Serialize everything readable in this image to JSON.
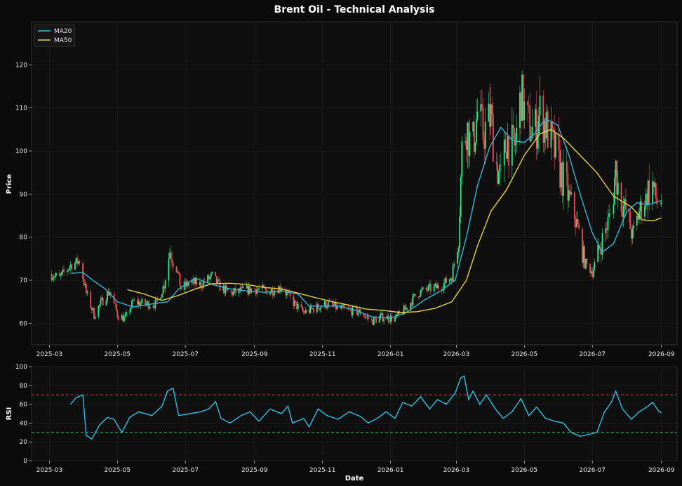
{
  "chart_data": [
    {
      "type": "candlestick",
      "title": "Brent Oil - Technical Analysis",
      "ylabel": "Price",
      "xlim": [
        "2025-02-13",
        "2026-09-15"
      ],
      "ylim": [
        55,
        130
      ],
      "yticks": [
        60,
        70,
        80,
        90,
        100,
        110,
        120
      ],
      "xticks": [
        "2025-03",
        "2025-05",
        "2025-07",
        "2025-09",
        "2025-11",
        "2026-01",
        "2026-03",
        "2026-05",
        "2026-07",
        "2026-09"
      ],
      "grid": true,
      "legend": {
        "position": "top-left",
        "entries": [
          "MA20",
          "MA50"
        ]
      },
      "colors": {
        "up": "#2ee88a",
        "down": "#ef4d57",
        "ma20": "#31b6d8",
        "ma50": "#e8d23f",
        "background": "#0b0b0b",
        "panel": "#0f0f0f"
      },
      "close_profile": [
        [
          "2025-03-01",
          71.5
        ],
        [
          "2025-03-10",
          70.5
        ],
        [
          "2025-03-20",
          73.5
        ],
        [
          "2025-03-28",
          74.5
        ],
        [
          "2025-04-03",
          67
        ],
        [
          "2025-04-10",
          62
        ],
        [
          "2025-04-17",
          65
        ],
        [
          "2025-04-24",
          67.5
        ],
        [
          "2025-05-01",
          62
        ],
        [
          "2025-05-08",
          61
        ],
        [
          "2025-05-15",
          65
        ],
        [
          "2025-05-25",
          64.5
        ],
        [
          "2025-06-05",
          64.5
        ],
        [
          "2025-06-12",
          69
        ],
        [
          "2025-06-17",
          77
        ],
        [
          "2025-06-22",
          74
        ],
        [
          "2025-06-27",
          68
        ],
        [
          "2025-07-05",
          69.5
        ],
        [
          "2025-07-15",
          69
        ],
        [
          "2025-07-25",
          71
        ],
        [
          "2025-08-01",
          68.5
        ],
        [
          "2025-08-10",
          67
        ],
        [
          "2025-08-20",
          67.5
        ],
        [
          "2025-09-01",
          68
        ],
        [
          "2025-09-15",
          67.5
        ],
        [
          "2025-09-25",
          68.5
        ],
        [
          "2025-10-05",
          65
        ],
        [
          "2025-10-15",
          62.5
        ],
        [
          "2025-10-25",
          63.5
        ],
        [
          "2025-11-05",
          64.5
        ],
        [
          "2025-11-15",
          63.5
        ],
        [
          "2025-11-25",
          63
        ],
        [
          "2025-12-05",
          62.5
        ],
        [
          "2025-12-15",
          60.5
        ],
        [
          "2025-12-25",
          61.5
        ],
        [
          "2026-01-05",
          61
        ],
        [
          "2026-01-15",
          63.5
        ],
        [
          "2026-01-25",
          67
        ],
        [
          "2026-02-05",
          68
        ],
        [
          "2026-02-15",
          68.5
        ],
        [
          "2026-02-25",
          71
        ],
        [
          "2026-03-03",
          80
        ],
        [
          "2026-03-06",
          100
        ],
        [
          "2026-03-10",
          106
        ],
        [
          "2026-03-15",
          100
        ],
        [
          "2026-03-20",
          109
        ],
        [
          "2026-03-25",
          104
        ],
        [
          "2026-04-01",
          108
        ],
        [
          "2026-04-05",
          98
        ],
        [
          "2026-04-10",
          93
        ],
        [
          "2026-04-15",
          103
        ],
        [
          "2026-04-22",
          100
        ],
        [
          "2026-04-28",
          113
        ],
        [
          "2026-05-03",
          107
        ],
        [
          "2026-05-10",
          104
        ],
        [
          "2026-05-15",
          109
        ],
        [
          "2026-05-20",
          106
        ],
        [
          "2026-05-28",
          100
        ],
        [
          "2026-06-05",
          93
        ],
        [
          "2026-06-12",
          88
        ],
        [
          "2026-06-18",
          82
        ],
        [
          "2026-06-24",
          74
        ],
        [
          "2026-07-01",
          72
        ],
        [
          "2026-07-07",
          77
        ],
        [
          "2026-07-12",
          81
        ],
        [
          "2026-07-18",
          86
        ],
        [
          "2026-07-22",
          96
        ],
        [
          "2026-07-26",
          88
        ],
        [
          "2026-08-01",
          86
        ],
        [
          "2026-08-06",
          80
        ],
        [
          "2026-08-12",
          86
        ],
        [
          "2026-08-18",
          89
        ],
        [
          "2026-08-23",
          93
        ],
        [
          "2026-08-28",
          88
        ],
        [
          "2026-09-01",
          88.5
        ]
      ],
      "series": [
        {
          "name": "MA20",
          "points": [
            [
              "2025-03-20",
              71.6
            ],
            [
              "2025-03-31",
              71.8
            ],
            [
              "2025-04-10",
              69.8
            ],
            [
              "2025-04-20",
              68
            ],
            [
              "2025-05-01",
              65
            ],
            [
              "2025-05-15",
              63.8
            ],
            [
              "2025-06-01",
              64.5
            ],
            [
              "2025-06-15",
              65
            ],
            [
              "2025-06-25",
              68
            ],
            [
              "2025-07-10",
              70.5
            ],
            [
              "2025-07-25",
              69
            ],
            [
              "2025-08-10",
              68
            ],
            [
              "2025-08-25",
              67.5
            ],
            [
              "2025-09-10",
              67.2
            ],
            [
              "2025-09-25",
              67.5
            ],
            [
              "2025-10-10",
              66.8
            ],
            [
              "2025-10-20",
              64
            ],
            [
              "2025-11-01",
              64
            ],
            [
              "2025-11-15",
              64
            ],
            [
              "2025-12-01",
              63
            ],
            [
              "2025-12-15",
              61.5
            ],
            [
              "2026-01-01",
              61.2
            ],
            [
              "2026-01-15",
              62.5
            ],
            [
              "2026-02-01",
              65.5
            ],
            [
              "2026-02-15",
              67.5
            ],
            [
              "2026-02-28",
              70
            ],
            [
              "2026-03-10",
              80
            ],
            [
              "2026-03-20",
              92
            ],
            [
              "2026-03-31",
              101
            ],
            [
              "2026-04-10",
              105.5
            ],
            [
              "2026-04-20",
              102.5
            ],
            [
              "2026-05-01",
              102
            ],
            [
              "2026-05-10",
              104
            ],
            [
              "2026-05-20",
              107.5
            ],
            [
              "2026-05-31",
              106
            ],
            [
              "2026-06-10",
              99
            ],
            [
              "2026-06-20",
              90
            ],
            [
              "2026-07-01",
              81
            ],
            [
              "2026-07-10",
              76.5
            ],
            [
              "2026-07-20",
              78.5
            ],
            [
              "2026-08-01",
              86
            ],
            [
              "2026-08-10",
              88
            ],
            [
              "2026-08-20",
              87.5
            ],
            [
              "2026-09-01",
              88.5
            ]
          ]
        },
        {
          "name": "MA50",
          "points": [
            [
              "2025-05-10",
              67.8
            ],
            [
              "2025-05-25",
              66.8
            ],
            [
              "2025-06-10",
              65.3
            ],
            [
              "2025-06-25",
              66.5
            ],
            [
              "2025-07-10",
              68
            ],
            [
              "2025-07-25",
              69.2
            ],
            [
              "2025-08-10",
              69.3
            ],
            [
              "2025-08-25",
              69
            ],
            [
              "2025-09-10",
              68.3
            ],
            [
              "2025-09-25",
              68
            ],
            [
              "2025-10-10",
              67
            ],
            [
              "2025-10-25",
              66
            ],
            [
              "2025-11-10",
              65
            ],
            [
              "2025-11-25",
              64.2
            ],
            [
              "2025-12-10",
              63.3
            ],
            [
              "2025-12-25",
              63
            ],
            [
              "2026-01-10",
              62.5
            ],
            [
              "2026-01-25",
              62.7
            ],
            [
              "2026-02-10",
              63.5
            ],
            [
              "2026-02-25",
              65
            ],
            [
              "2026-03-10",
              70
            ],
            [
              "2026-03-20",
              78
            ],
            [
              "2026-04-01",
              86
            ],
            [
              "2026-04-15",
              91
            ],
            [
              "2026-05-01",
              99
            ],
            [
              "2026-05-15",
              104
            ],
            [
              "2026-05-25",
              105
            ],
            [
              "2026-06-05",
              103
            ],
            [
              "2026-06-20",
              99
            ],
            [
              "2026-07-05",
              95
            ],
            [
              "2026-07-20",
              89.5
            ],
            [
              "2026-08-05",
              87
            ],
            [
              "2026-08-15",
              84
            ],
            [
              "2026-08-25",
              83.8
            ],
            [
              "2026-09-01",
              84.5
            ]
          ]
        }
      ]
    },
    {
      "type": "line",
      "xlabel": "Date",
      "ylabel": "RSI",
      "xlim": [
        "2025-02-13",
        "2026-09-15"
      ],
      "ylim": [
        0,
        100
      ],
      "yticks": [
        0,
        20,
        40,
        60,
        80,
        100
      ],
      "xticks": [
        "2025-03",
        "2025-05",
        "2025-07",
        "2025-09",
        "2025-11",
        "2026-01",
        "2026-03",
        "2026-05",
        "2026-07",
        "2026-09"
      ],
      "grid": true,
      "reference_lines": [
        {
          "value": 70,
          "color": "#d9534f"
        },
        {
          "value": 30,
          "color": "#2ecc71"
        }
      ],
      "series": [
        {
          "name": "RSI",
          "color": "#2fc0e8",
          "points": [
            [
              "2025-03-20",
              60
            ],
            [
              "2025-03-25",
              67
            ],
            [
              "2025-03-31",
              70
            ],
            [
              "2025-04-03",
              27
            ],
            [
              "2025-04-08",
              23
            ],
            [
              "2025-04-15",
              38
            ],
            [
              "2025-04-22",
              46
            ],
            [
              "2025-04-28",
              44
            ],
            [
              "2025-05-05",
              30
            ],
            [
              "2025-05-12",
              46
            ],
            [
              "2025-05-20",
              52
            ],
            [
              "2025-06-01",
              48
            ],
            [
              "2025-06-10",
              58
            ],
            [
              "2025-06-15",
              74
            ],
            [
              "2025-06-20",
              77
            ],
            [
              "2025-06-25",
              48
            ],
            [
              "2025-07-05",
              50
            ],
            [
              "2025-07-15",
              52
            ],
            [
              "2025-07-22",
              55
            ],
            [
              "2025-07-28",
              63
            ],
            [
              "2025-08-02",
              45
            ],
            [
              "2025-08-10",
              40
            ],
            [
              "2025-08-20",
              48
            ],
            [
              "2025-08-28",
              52
            ],
            [
              "2025-09-05",
              42
            ],
            [
              "2025-09-15",
              55
            ],
            [
              "2025-09-25",
              50
            ],
            [
              "2025-10-01",
              58
            ],
            [
              "2025-10-05",
              40
            ],
            [
              "2025-10-15",
              45
            ],
            [
              "2025-10-20",
              36
            ],
            [
              "2025-10-28",
              55
            ],
            [
              "2025-11-05",
              48
            ],
            [
              "2025-11-15",
              44
            ],
            [
              "2025-11-25",
              52
            ],
            [
              "2025-12-05",
              47
            ],
            [
              "2025-12-12",
              40
            ],
            [
              "2025-12-20",
              45
            ],
            [
              "2025-12-28",
              52
            ],
            [
              "2026-01-05",
              45
            ],
            [
              "2026-01-12",
              62
            ],
            [
              "2026-01-20",
              58
            ],
            [
              "2026-01-28",
              68
            ],
            [
              "2026-02-05",
              55
            ],
            [
              "2026-02-12",
              65
            ],
            [
              "2026-02-20",
              60
            ],
            [
              "2026-02-28",
              72
            ],
            [
              "2026-03-05",
              88
            ],
            [
              "2026-03-08",
              90
            ],
            [
              "2026-03-12",
              65
            ],
            [
              "2026-03-16",
              74
            ],
            [
              "2026-03-22",
              60
            ],
            [
              "2026-03-28",
              70
            ],
            [
              "2026-04-05",
              55
            ],
            [
              "2026-04-12",
              45
            ],
            [
              "2026-04-20",
              52
            ],
            [
              "2026-04-28",
              66
            ],
            [
              "2026-05-05",
              48
            ],
            [
              "2026-05-12",
              57
            ],
            [
              "2026-05-20",
              45
            ],
            [
              "2026-05-28",
              42
            ],
            [
              "2026-06-05",
              40
            ],
            [
              "2026-06-12",
              30
            ],
            [
              "2026-06-20",
              26
            ],
            [
              "2026-06-28",
              28
            ],
            [
              "2026-07-05",
              30
            ],
            [
              "2026-07-12",
              52
            ],
            [
              "2026-07-18",
              62
            ],
            [
              "2026-07-22",
              74
            ],
            [
              "2026-07-28",
              55
            ],
            [
              "2026-08-05",
              44
            ],
            [
              "2026-08-12",
              52
            ],
            [
              "2026-08-20",
              58
            ],
            [
              "2026-08-24",
              62
            ],
            [
              "2026-08-30",
              52
            ],
            [
              "2026-09-01",
              51
            ]
          ]
        }
      ]
    }
  ]
}
